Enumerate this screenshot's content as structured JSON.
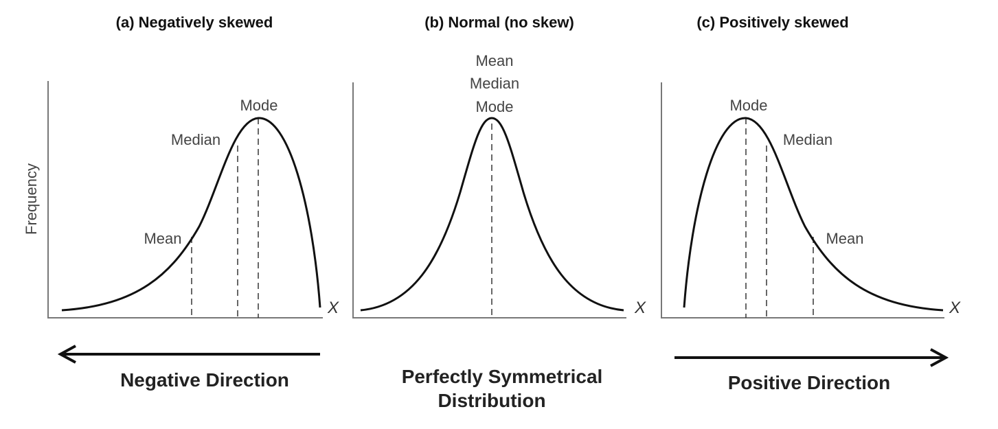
{
  "y_axis_label": "Frequency",
  "panels": [
    {
      "title": "(a) Negatively skewed",
      "x_label": "X",
      "markers": [
        "Mode",
        "Median",
        "Mean"
      ],
      "caption": [
        "Negative Direction"
      ]
    },
    {
      "title": "(b) Normal (no skew)",
      "x_label": "X",
      "markers": [
        "Mean",
        "Median",
        "Mode"
      ],
      "caption": [
        "Perfectly Symmetrical",
        "Distribution"
      ]
    },
    {
      "title": "(c) Positively skewed",
      "x_label": "X",
      "markers": [
        "Mode",
        "Median",
        "Mean"
      ],
      "caption": [
        "Positive Direction"
      ]
    }
  ]
}
